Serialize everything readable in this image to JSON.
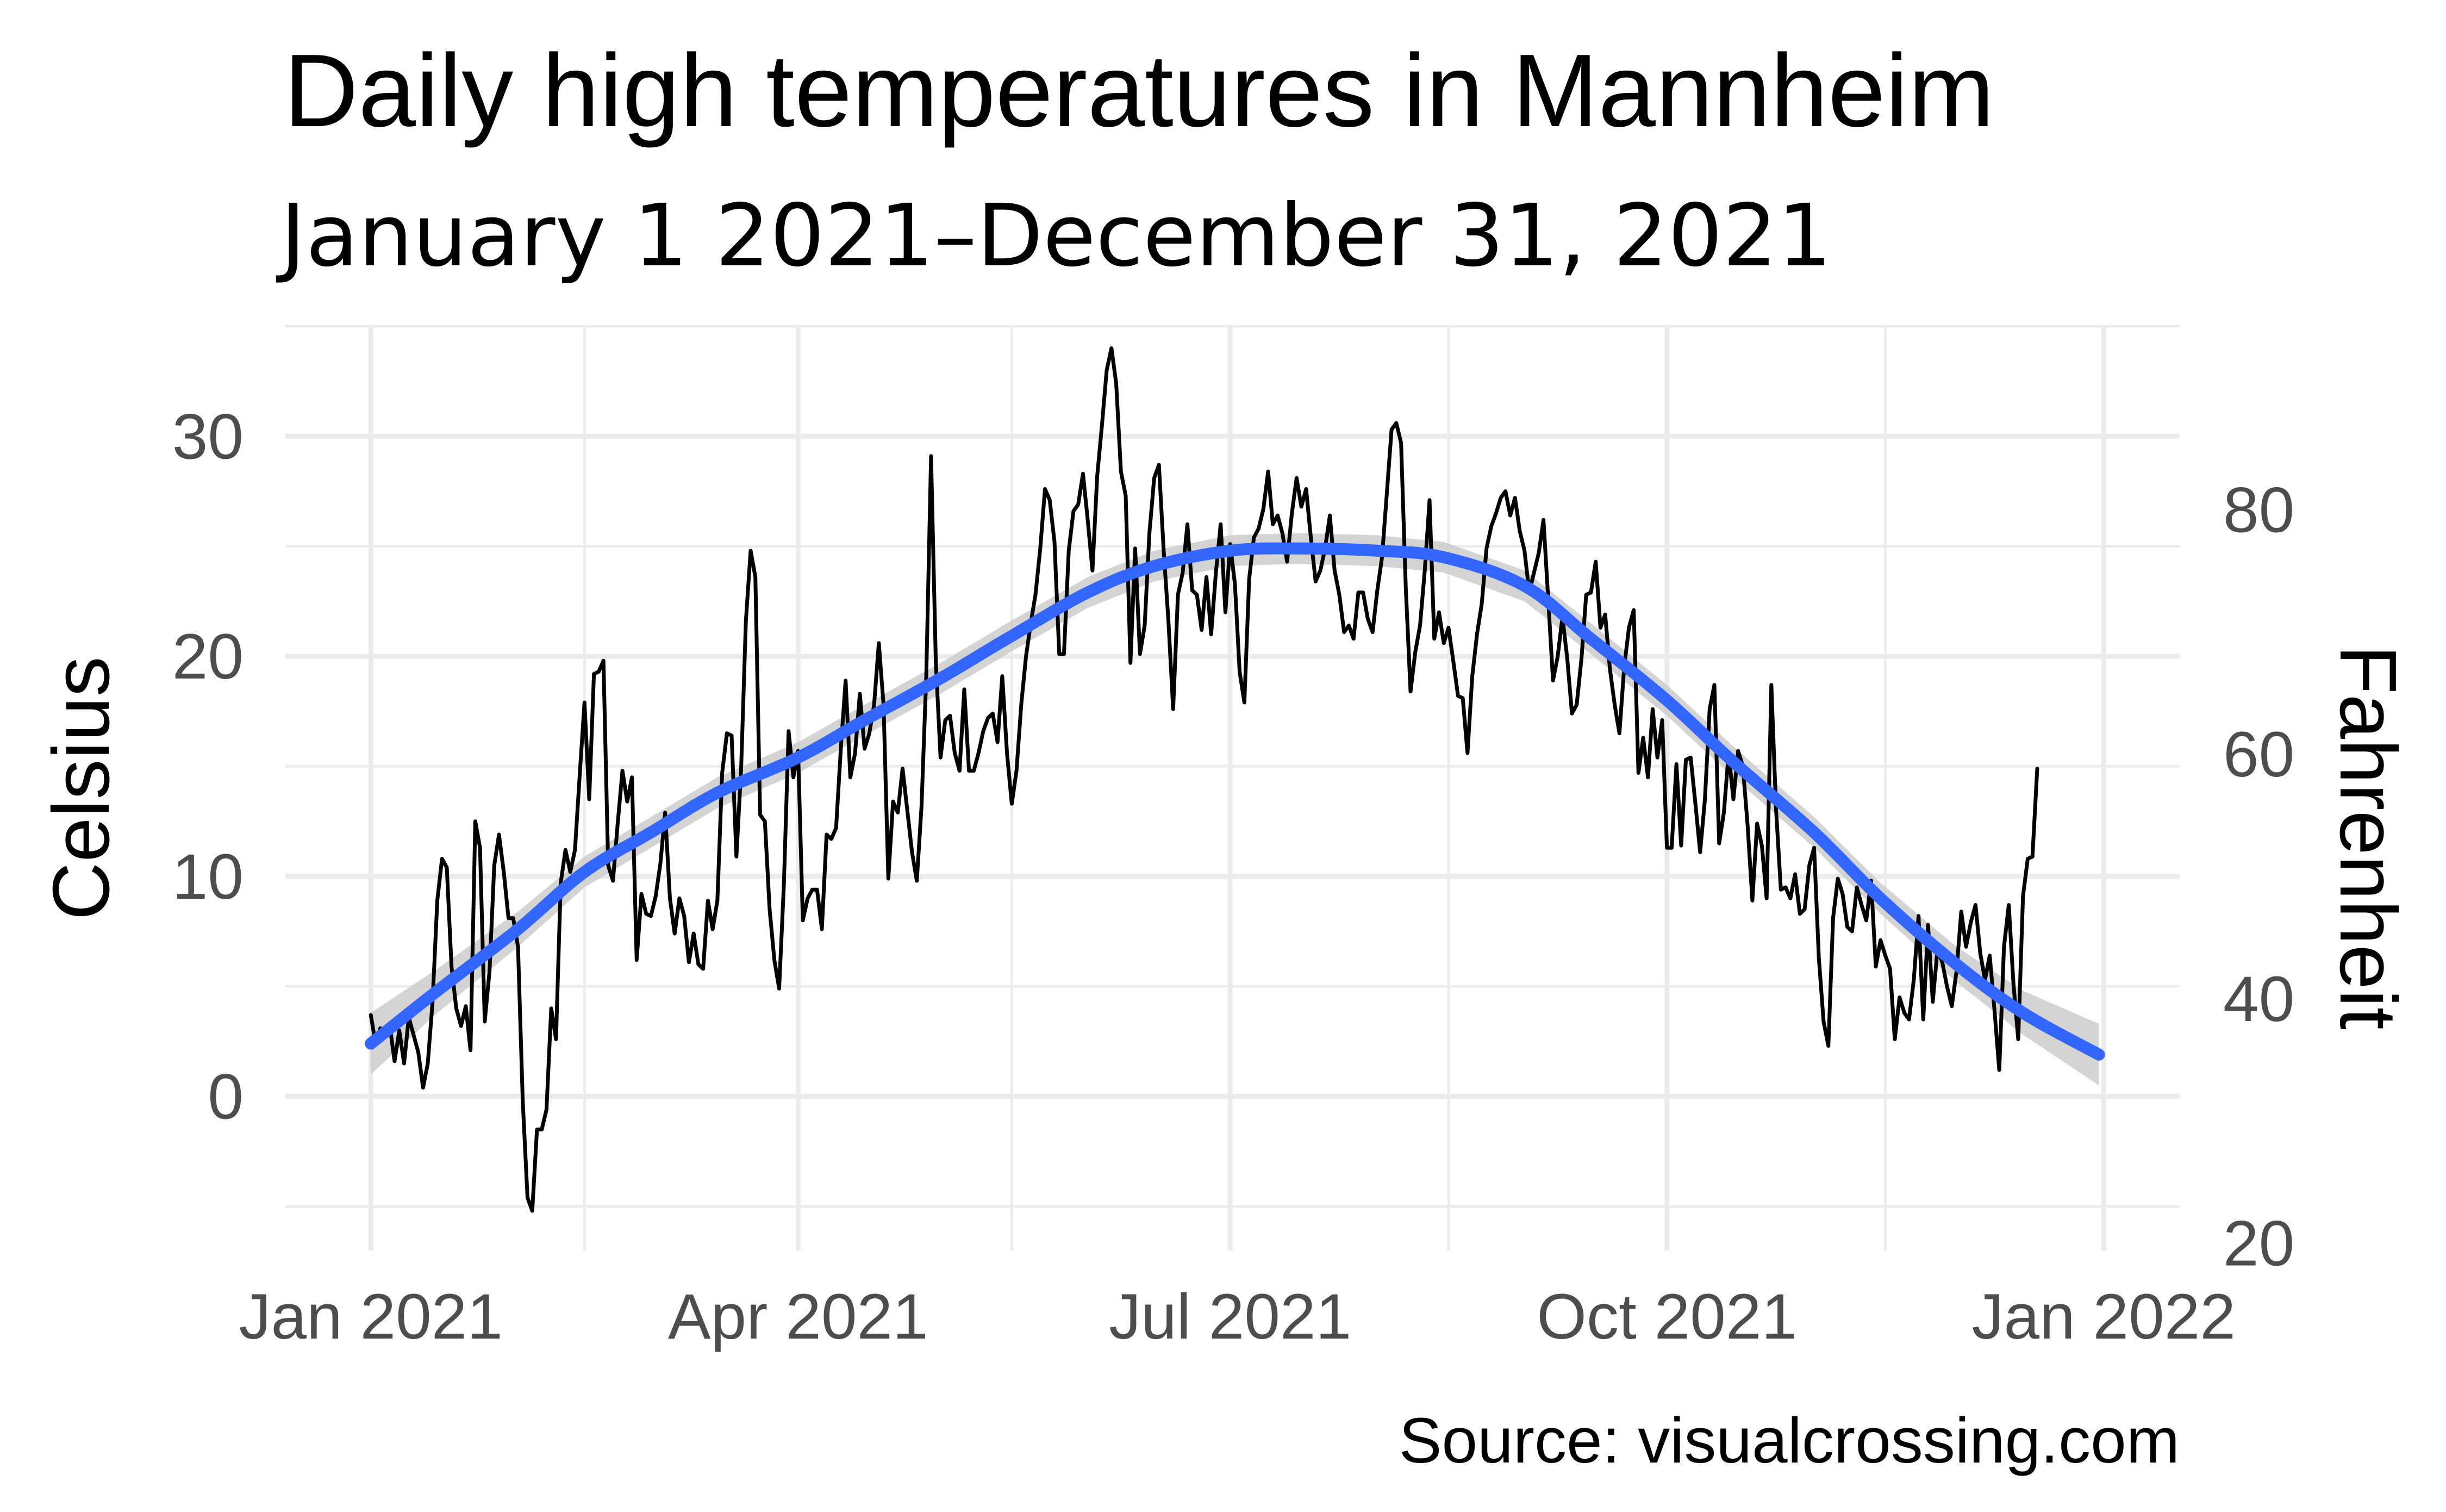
{
  "chart_data": {
    "type": "line",
    "title": "Daily high temperatures in Mannheim",
    "subtitle": "January 1 2021–December 31, 2021",
    "caption": "Source: visualcrossing.com",
    "xlabel": "",
    "ylabel": "Celsius",
    "ylabel_right": "Fahrenheit",
    "x_axis": {
      "type": "date",
      "range": [
        "2020-12-14",
        "2022-01-17"
      ],
      "ticks": [
        {
          "date": "2021-01-01",
          "label": "Jan 2021"
        },
        {
          "date": "2021-04-01",
          "label": "Apr 2021"
        },
        {
          "date": "2021-07-01",
          "label": "Jul 2021"
        },
        {
          "date": "2021-10-01",
          "label": "Oct 2021"
        },
        {
          "date": "2022-01-01",
          "label": "Jan 2022"
        }
      ],
      "minor_ticks": [
        "2021-02-15",
        "2021-05-16",
        "2021-08-16",
        "2021-11-16"
      ]
    },
    "y_axis": {
      "ylim": [
        -7,
        35
      ],
      "ticks": [
        0,
        10,
        20,
        30
      ],
      "labels": [
        "0",
        "10",
        "20",
        "30"
      ],
      "minor_ticks": [
        -5,
        5,
        15,
        25,
        35
      ]
    },
    "y_axis_right": {
      "unit": "Fahrenheit",
      "ticks": [
        20,
        40,
        60,
        80
      ],
      "labels": [
        "20",
        "40",
        "60",
        "80"
      ]
    },
    "grid": true,
    "legend": "none",
    "series": [
      {
        "kind": "daily",
        "color": "#000000",
        "x_start": "2021-01-01",
        "x_end": "2021-12-31",
        "x_step": "1 day",
        "values": [
          3.7,
          2.4,
          3.1,
          2.8,
          3.2,
          1.6,
          3.0,
          1.5,
          3.6,
          2.8,
          2.0,
          0.4,
          1.5,
          4.3,
          8.9,
          10.8,
          10.4,
          5.9,
          4.0,
          3.2,
          4.1,
          2.1,
          12.5,
          11.3,
          3.4,
          5.7,
          10.5,
          11.9,
          10.2,
          8.1,
          8.1,
          6.8,
          -0.2,
          -4.6,
          -5.2,
          -1.5,
          -1.5,
          -0.6,
          4.0,
          2.6,
          9.7,
          11.2,
          10.2,
          11.2,
          14.6,
          17.9,
          13.5,
          19.2,
          19.3,
          19.8,
          10.5,
          9.8,
          12.4,
          14.8,
          13.4,
          14.5,
          6.2,
          9.2,
          8.3,
          8.2,
          9.1,
          10.6,
          12.9,
          9.0,
          7.4,
          9.0,
          8.2,
          6.1,
          7.4,
          6.0,
          5.8,
          8.9,
          7.6,
          8.9,
          14.7,
          16.5,
          16.4,
          10.9,
          14.9,
          21.6,
          24.8,
          23.6,
          12.8,
          12.5,
          8.5,
          6.2,
          4.9,
          9.6,
          16.6,
          14.5,
          15.7,
          8.0,
          9.0,
          9.4,
          9.4,
          7.6,
          11.9,
          11.7,
          12.2,
          15.8,
          18.9,
          14.5,
          15.6,
          18.3,
          15.8,
          16.5,
          17.8,
          20.6,
          17.8,
          9.9,
          13.4,
          12.9,
          14.9,
          13.0,
          11.1,
          9.8,
          13.2,
          19.1,
          29.1,
          19.8,
          15.4,
          17.1,
          17.3,
          15.6,
          14.8,
          18.5,
          14.8,
          14.8,
          15.6,
          16.6,
          17.2,
          17.4,
          16.1,
          19.1,
          15.6,
          13.3,
          14.8,
          17.8,
          20.0,
          21.5,
          22.8,
          24.9,
          27.6,
          27.1,
          25.2,
          20.1,
          20.1,
          24.8,
          26.6,
          26.9,
          28.3,
          26.2,
          23.9,
          28.2,
          30.5,
          33.0,
          34.0,
          32.4,
          28.4,
          27.3,
          19.7,
          24.9,
          20.1,
          21.4,
          25.6,
          28.1,
          28.7,
          24.8,
          21.6,
          17.6,
          22.8,
          23.8,
          26.0,
          23.0,
          22.8,
          21.2,
          23.6,
          21.0,
          23.8,
          26.0,
          22.0,
          25.1,
          23.3,
          19.3,
          17.9,
          23.5,
          25.4,
          25.8,
          26.7,
          28.4,
          26.0,
          26.4,
          25.6,
          24.3,
          26.5,
          28.1,
          26.8,
          27.6,
          25.4,
          23.4,
          23.9,
          24.9,
          26.4,
          23.9,
          22.8,
          21.1,
          21.4,
          20.8,
          22.9,
          22.9,
          21.7,
          21.1,
          23.0,
          24.5,
          27.4,
          30.3,
          30.6,
          29.7,
          23.1,
          18.4,
          20.2,
          21.4,
          23.9,
          27.1,
          20.8,
          22.0,
          20.6,
          21.3,
          19.8,
          18.2,
          18.1,
          15.6,
          19.1,
          21.0,
          22.4,
          24.9,
          25.9,
          26.5,
          27.2,
          27.5,
          26.4,
          27.2,
          25.7,
          24.8,
          22.9,
          23.8,
          24.7,
          26.2,
          22.6,
          18.9,
          20.0,
          21.8,
          19.9,
          17.4,
          17.8,
          19.9,
          22.8,
          22.9,
          24.3,
          21.3,
          21.9,
          19.4,
          17.8,
          16.5,
          19.5,
          21.3,
          22.1,
          14.7,
          16.3,
          14.5,
          17.6,
          15.4,
          17.1,
          11.3,
          11.3,
          15.1,
          11.4,
          15.3,
          15.4,
          13.3,
          11.1,
          13.5,
          17.6,
          18.7,
          11.5,
          12.9,
          15.6,
          13.5,
          15.7,
          15.0,
          12.3,
          8.9,
          12.4,
          11.4,
          9.0,
          18.7,
          13.0,
          9.4,
          9.5,
          9.0,
          10.1,
          8.3,
          8.5,
          10.5,
          11.3,
          6.3,
          3.4,
          2.3,
          8.1,
          9.9,
          9.2,
          7.7,
          7.5,
          9.5,
          8.7,
          8.0,
          9.8,
          5.9,
          7.1,
          6.4,
          5.8,
          2.6,
          4.5,
          3.8,
          3.5,
          5.3,
          8.2,
          3.5,
          7.8,
          4.3,
          6.7,
          6.1,
          5.0,
          4.1,
          5.7,
          8.4,
          6.8,
          7.9,
          8.7,
          6.5,
          5.3,
          6.4,
          3.9,
          1.2,
          6.8,
          8.7,
          5.1,
          2.6,
          9.1,
          10.8,
          10.9,
          14.9
        ]
      },
      {
        "kind": "smooth",
        "color": "#3366ff",
        "band_color": "#cccccc",
        "x": [
          "2021-01-01",
          "2021-01-15",
          "2021-02-01",
          "2021-02-15",
          "2021-03-01",
          "2021-03-15",
          "2021-04-01",
          "2021-04-15",
          "2021-05-01",
          "2021-05-15",
          "2021-06-01",
          "2021-06-15",
          "2021-07-01",
          "2021-07-15",
          "2021-08-01",
          "2021-08-15",
          "2021-09-01",
          "2021-09-15",
          "2021-10-01",
          "2021-10-15",
          "2021-11-01",
          "2021-11-15",
          "2021-12-01",
          "2021-12-15",
          "2021-12-31"
        ],
        "values": [
          2.4,
          4.8,
          7.6,
          10.2,
          12.0,
          13.8,
          15.4,
          17.1,
          19.0,
          20.8,
          22.9,
          24.1,
          24.8,
          24.9,
          24.8,
          24.5,
          23.2,
          20.8,
          18.0,
          15.2,
          12.0,
          9.0,
          6.0,
          3.8,
          1.9
        ],
        "band_half_width": [
          1.4,
          1.0,
          0.8,
          0.7,
          0.7,
          0.7,
          0.7,
          0.7,
          0.7,
          0.7,
          0.7,
          0.7,
          0.7,
          0.7,
          0.7,
          0.7,
          0.7,
          0.7,
          0.7,
          0.7,
          0.7,
          0.7,
          0.8,
          1.0,
          1.4
        ]
      }
    ]
  }
}
